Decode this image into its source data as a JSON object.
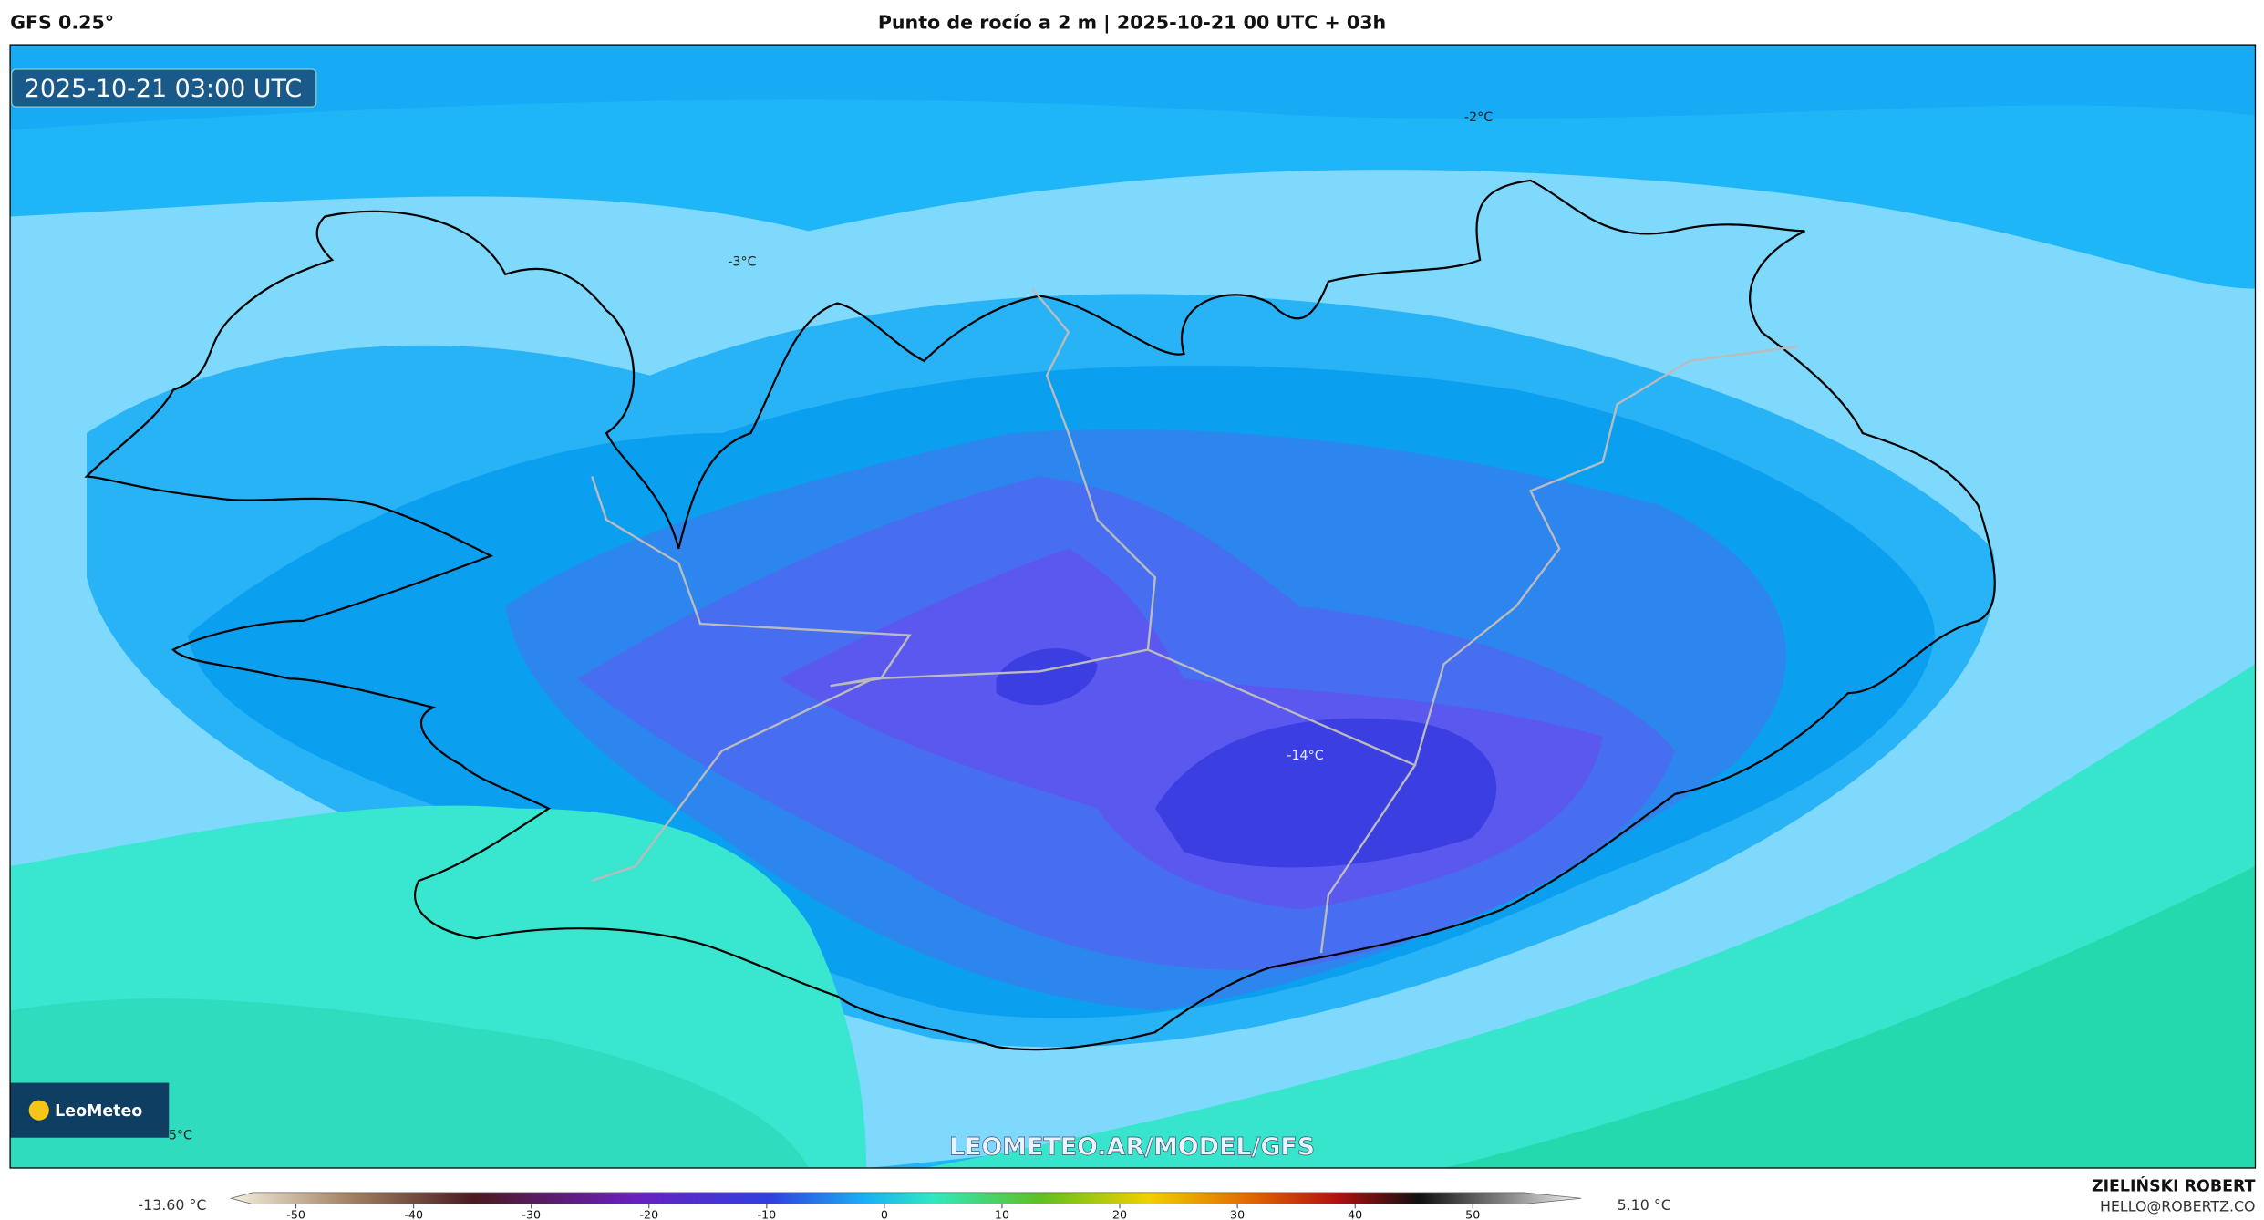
{
  "header": {
    "model": "GFS 0.25°",
    "title": "Punto de rocío a 2 m | 2025-10-21 00 UTC + 03h"
  },
  "map": {
    "timestamp": "2025-10-21 03:00 UTC",
    "contour_labels": [
      "-2°C",
      "-3°C",
      "-14°C",
      "5°C"
    ],
    "watermark": "LEOMETEO.AR/MODEL/GFS",
    "logo": "LeoMeteo"
  },
  "colorbar": {
    "min_label": "-13.60 °C",
    "max_label": "5.10 °C",
    "ticks": [
      -50,
      -40,
      -30,
      -20,
      -10,
      0,
      10,
      20,
      30,
      40,
      50
    ]
  },
  "footer": {
    "author": "ZIELIŃSKI ROBERT",
    "email": "HELLO@ROBERTZ.CO"
  }
}
